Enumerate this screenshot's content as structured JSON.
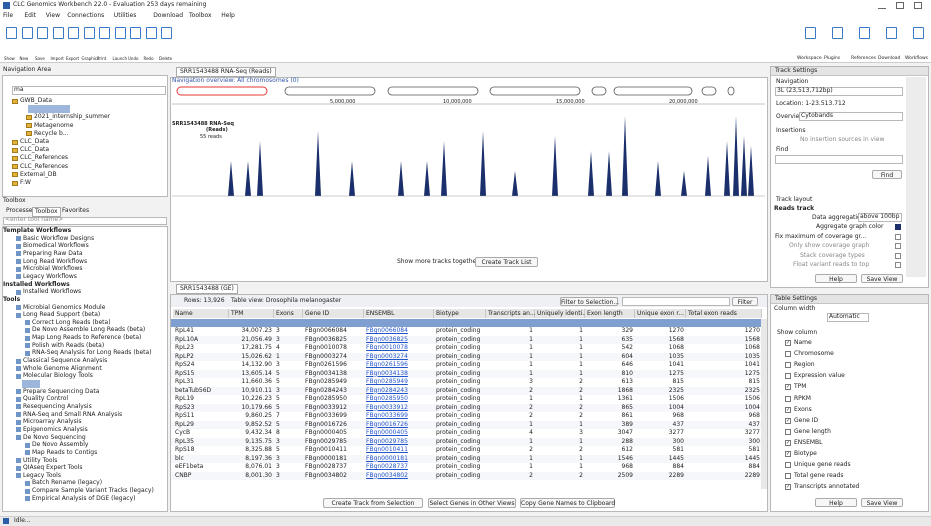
{
  "window": {
    "title": "CLC Genomics Workbench 22.0 - Evaluation 253 days remaining",
    "menu": [
      "File",
      "Edit",
      "View",
      "Connections",
      "Utilities",
      "Download",
      "Toolbox",
      "Help"
    ],
    "status": "Idle..."
  },
  "toolbar": {
    "left": [
      "Show",
      "New",
      "Save",
      "Import",
      "Export",
      "Graphics",
      "Print",
      "Launch",
      "Undo",
      "Redo",
      "Delete"
    ],
    "right": [
      "Workspace",
      "Plugins",
      "References",
      "Download",
      "Workflows"
    ]
  },
  "navigation": {
    "title": "Navigation Area",
    "search": "ma",
    "items": [
      "GWB_Data",
      "2021_internship_summer",
      "Metagenome",
      "Recycle b...",
      "CLC_Data",
      "CLC_Data",
      "CLC_References",
      "CLC_References",
      "External_DB",
      "F:W"
    ]
  },
  "toolbox": {
    "title": "Toolbox",
    "tabs": [
      "Processes",
      "Toolbox",
      "Favorites"
    ],
    "search": "<enter tool name>",
    "items": [
      "Template Workflows",
      "Basic Workflow Designs",
      "Biomedical Workflows",
      "Preparing Raw Data",
      "Long Read Workflows",
      "Microbial Workflows",
      "Legacy Workflows",
      "Installed Workflows",
      "Installed Workflows",
      "Tools",
      "Microbial Genomics Module",
      "Long Read Support (beta)",
      "Correct Long Reads (beta)",
      "De Novo Assemble Long Reads (beta)",
      "Map Long Reads to Reference (beta)",
      "Polish with Reads (beta)",
      "RNA-Seq Analysis for Long Reads (beta)",
      "Classical Sequence Analysis",
      "Whole Genome Alignment",
      "Molecular Biology Tools",
      "Prepare Sequencing Data",
      "Quality Control",
      "Resequencing Analysis",
      "RNA-Seq and Small RNA Analysis",
      "Microarray Analysis",
      "Epigenomics Analysis",
      "De Novo Sequencing",
      "De Novo Assembly",
      "Map Reads to Contigs",
      "Utility Tools",
      "QIAseq Expert Tools",
      "Legacy Tools",
      "Batch Rename (legacy)",
      "Compare Sample Variant Tracks (legacy)",
      "Empirical Analysis of DGE (legacy)"
    ]
  },
  "track_view": {
    "tab": "SRR1543488 RNA-Seq (Reads)",
    "overview": "Navigation overview: All chromosomes (0)",
    "ruler": [
      "5,000,000",
      "10,000,000",
      "15,000,000",
      "20,000,000"
    ],
    "track_name": "SRR1543488 RNA-Seq",
    "track_sub": "(Reads)",
    "reads": "55 reads",
    "more": "Show more tracks together:",
    "button": "Create Track List"
  },
  "table_view": {
    "tab": "SRR1543488 (GE)",
    "rows_count": "Rows: 13,926",
    "view": "Table view: Drosophila melanogaster",
    "filter_selection": "Filter to Selection...",
    "filter": "Filter",
    "columns": [
      "Name",
      "TPM",
      "Exons",
      "Gene ID",
      "ENSEMBL",
      "Biotype",
      "Transcripts an...",
      "Uniquely identi...",
      "Exon length",
      "Unique exon r...",
      "Total exon reads"
    ],
    "rows": [
      [
        "RpL41",
        "34,007.23",
        "3",
        "FBgn0066084",
        "FBgn0066084",
        "protein_coding",
        "1",
        "1",
        "329",
        "1270",
        "1270"
      ],
      [
        "RpL10A",
        "21,056.49",
        "3",
        "FBgn0036825",
        "FBgn0036825",
        "protein_coding",
        "1",
        "1",
        "635",
        "1568",
        "1568"
      ],
      [
        "RpL23",
        "17,281.75",
        "4",
        "FBgn0010078",
        "FBgn0010078",
        "protein_coding",
        "1",
        "1",
        "542",
        "1068",
        "1068"
      ],
      [
        "RpLP2",
        "15,026.62",
        "1",
        "FBgn0003274",
        "FBgn0003274",
        "protein_coding",
        "1",
        "1",
        "604",
        "1035",
        "1035"
      ],
      [
        "RpS24",
        "14,132.90",
        "3",
        "FBgn0261596",
        "FBgn0261596",
        "protein_coding",
        "1",
        "1",
        "646",
        "1041",
        "1041"
      ],
      [
        "RpS15",
        "13,605.14",
        "5",
        "FBgn0034138",
        "FBgn0034138",
        "protein_coding",
        "1",
        "1",
        "810",
        "1275",
        "1275"
      ],
      [
        "RpL31",
        "11,660.36",
        "5",
        "FBgn0285949",
        "FBgn0285949",
        "protein_coding",
        "3",
        "2",
        "613",
        "815",
        "815"
      ],
      [
        "betaTub56D",
        "10,910.11",
        "3",
        "FBgn0284243",
        "FBgn0284243",
        "protein_coding",
        "2",
        "2",
        "1868",
        "2325",
        "2325"
      ],
      [
        "RpL19",
        "10,226.23",
        "5",
        "FBgn0285950",
        "FBgn0285950",
        "protein_coding",
        "1",
        "1",
        "1361",
        "1506",
        "1506"
      ],
      [
        "RpS23",
        "10,179.66",
        "5",
        "FBgn0033912",
        "FBgn0033912",
        "protein_coding",
        "2",
        "2",
        "865",
        "1004",
        "1004"
      ],
      [
        "RpS11",
        "9,860.25",
        "7",
        "FBgn0033699",
        "FBgn0033699",
        "protein_coding",
        "2",
        "2",
        "861",
        "968",
        "968"
      ],
      [
        "RpL29",
        "9,852.52",
        "5",
        "FBgn0016726",
        "FBgn0016726",
        "protein_coding",
        "1",
        "1",
        "389",
        "437",
        "437"
      ],
      [
        "CycB",
        "9,432.34",
        "8",
        "FBgn0000405",
        "FBgn0000405",
        "protein_coding",
        "4",
        "3",
        "3047",
        "3277",
        "3277"
      ],
      [
        "RpL35",
        "9,135.75",
        "3",
        "FBgn0029785",
        "FBgn0029785",
        "protein_coding",
        "1",
        "1",
        "288",
        "300",
        "300"
      ],
      [
        "RpS18",
        "8,325.88",
        "5",
        "FBgn0010411",
        "FBgn0010411",
        "protein_coding",
        "2",
        "2",
        "612",
        "581",
        "581"
      ],
      [
        "blc",
        "8,197.36",
        "3",
        "FBgn0000181",
        "FBgn0000181",
        "protein_coding",
        "1",
        "1",
        "1546",
        "1445",
        "1445"
      ],
      [
        "eEF1beta",
        "8,076.01",
        "3",
        "FBgn0028737",
        "FBgn0028737",
        "protein_coding",
        "1",
        "1",
        "968",
        "884",
        "884"
      ],
      [
        "CNBP",
        "8,001.30",
        "3",
        "FBgn0034802",
        "FBgn0034802",
        "protein_coding",
        "2",
        "2",
        "2509",
        "2289",
        "2289"
      ]
    ],
    "buttons": [
      "Create Track from Selection",
      "Select Genes in Other Views",
      "Copy Gene Names to Clipboard"
    ]
  },
  "track_settings": {
    "title": "Track Settings",
    "navigation": "Navigation",
    "chromosome": "3L (23,513,712bp)",
    "location": "Location: 1-23.513.712",
    "overview_label": "Overview",
    "overview_value": "Cytobands",
    "insertions": "Insertions",
    "insertions_note": "No insertion sources in view",
    "find": "Find",
    "find_button": "Find",
    "layout": "Track layout",
    "reads_track": "Reads track",
    "aggregation_label": "Data aggregation",
    "aggregation_value": "above 100bp",
    "options": [
      "Aggregate graph color",
      "Fix maximum of coverage gr...",
      "Only show coverage graph",
      "Stack coverage types",
      "Float variant reads to top"
    ],
    "help": "Help",
    "save": "Save View"
  },
  "table_settings": {
    "title": "Table Settings",
    "column_width": "Column width",
    "width_value": "Automatic",
    "show_column": "Show column",
    "columns": [
      "Name",
      "Chromosome",
      "Region",
      "Expression value",
      "TPM",
      "RPKM",
      "Exons",
      "Gene ID",
      "Gene length",
      "ENSEMBL",
      "Biotype",
      "Unique gene reads",
      "Total gene reads",
      "Transcripts annotated"
    ],
    "help": "Help",
    "save": "Save View"
  }
}
